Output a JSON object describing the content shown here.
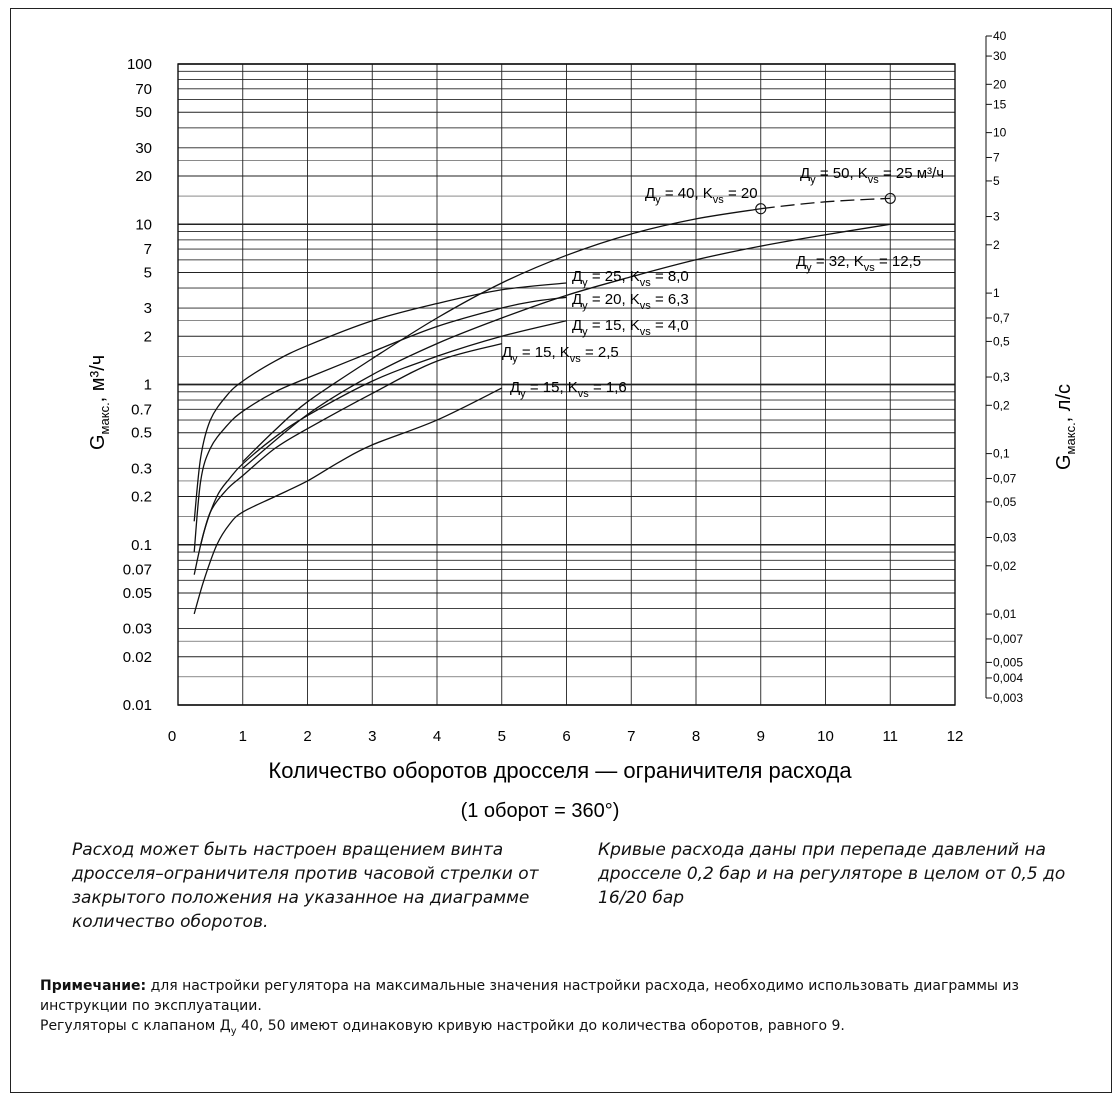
{
  "chart_data": {
    "type": "line",
    "xlabel": "Количество оборотов дросселя — ограничителя расхода",
    "xlabel_note": "(1 оборот = 360°)",
    "ylabel_main": "G",
    "ylabel_sub": "макс.",
    "ylabel_unit": ", м³/ч",
    "y2label_main": "G",
    "y2label_sub": "макс.",
    "y2label_unit": ", л/с",
    "y_scale": "log",
    "xlim": [
      0,
      12
    ],
    "ylim": [
      0.01,
      100
    ],
    "grid": true,
    "x_ticks": [
      "0",
      "1",
      "2",
      "3",
      "4",
      "5",
      "6",
      "7",
      "8",
      "9",
      "10",
      "11",
      "12"
    ],
    "y_ticks": [
      {
        "v": 100,
        "t": "100"
      },
      {
        "v": 70,
        "t": "70"
      },
      {
        "v": 50,
        "t": "50"
      },
      {
        "v": 30,
        "t": "30"
      },
      {
        "v": 20,
        "t": "20"
      },
      {
        "v": 10,
        "t": "10"
      },
      {
        "v": 7,
        "t": "7"
      },
      {
        "v": 5,
        "t": "5"
      },
      {
        "v": 3,
        "t": "3"
      },
      {
        "v": 2,
        "t": "2"
      },
      {
        "v": 1,
        "t": "1"
      },
      {
        "v": 0.7,
        "t": "0.7"
      },
      {
        "v": 0.5,
        "t": "0.5"
      },
      {
        "v": 0.3,
        "t": "0.3"
      },
      {
        "v": 0.2,
        "t": "0.2"
      },
      {
        "v": 0.1,
        "t": "0.1"
      },
      {
        "v": 0.07,
        "t": "0.07"
      },
      {
        "v": 0.05,
        "t": "0.05"
      },
      {
        "v": 0.03,
        "t": "0.03"
      },
      {
        "v": 0.02,
        "t": "0.02"
      },
      {
        "v": 0.01,
        "t": "0.01"
      }
    ],
    "y2_ticks": [
      {
        "v": 40,
        "t": "40"
      },
      {
        "v": 30,
        "t": "30"
      },
      {
        "v": 20,
        "t": "20"
      },
      {
        "v": 15,
        "t": "15"
      },
      {
        "v": 10,
        "t": "10"
      },
      {
        "v": 7,
        "t": "7"
      },
      {
        "v": 5,
        "t": "5"
      },
      {
        "v": 3,
        "t": "3"
      },
      {
        "v": 2,
        "t": "2"
      },
      {
        "v": 1,
        "t": "1"
      },
      {
        "v": 0.7,
        "t": "0,7"
      },
      {
        "v": 0.5,
        "t": "0,5"
      },
      {
        "v": 0.3,
        "t": "0,3"
      },
      {
        "v": 0.2,
        "t": "0,2"
      },
      {
        "v": 0.1,
        "t": "0,1"
      },
      {
        "v": 0.07,
        "t": "0,07"
      },
      {
        "v": 0.05,
        "t": "0,05"
      },
      {
        "v": 0.03,
        "t": "0,03"
      },
      {
        "v": 0.02,
        "t": "0,02"
      },
      {
        "v": 0.01,
        "t": "0,01"
      },
      {
        "v": 0.007,
        "t": "0,007"
      },
      {
        "v": 0.005,
        "t": "0,005"
      },
      {
        "v": 0.004,
        "t": "0,004"
      },
      {
        "v": 0.003,
        "t": "0,003"
      }
    ],
    "series": [
      {
        "name": "Ду = 50, Kvs = 25 м³/ч",
        "dashed": true,
        "x": [
          9.0,
          9.5,
          10.0,
          10.5,
          11.0
        ],
        "y": [
          12.5,
          13.2,
          13.8,
          14.2,
          14.5
        ]
      },
      {
        "name": "Ду = 40, Kvs = 20",
        "x": [
          1.0,
          1.5,
          2.0,
          3.0,
          4.0,
          5.0,
          6.0,
          7.0,
          8.0,
          9.0
        ],
        "y": [
          0.33,
          0.52,
          0.78,
          1.45,
          2.6,
          4.3,
          6.4,
          8.7,
          10.8,
          12.5
        ]
      },
      {
        "name": "Ду = 32, Kvs = 12,5",
        "x": [
          1.0,
          2.0,
          3.0,
          4.0,
          5.0,
          6.0,
          7.0,
          8.0,
          9.0,
          10.0,
          11.0
        ],
        "y": [
          0.3,
          0.65,
          1.15,
          1.8,
          2.6,
          3.6,
          4.7,
          6.0,
          7.3,
          8.6,
          10.0
        ]
      },
      {
        "name": "Ду = 25, Kvs = 8,0",
        "x": [
          0.25,
          0.35,
          0.5,
          0.75,
          1.0,
          1.5,
          2.0,
          3.0,
          4.0,
          5.0,
          6.0
        ],
        "y": [
          0.14,
          0.35,
          0.6,
          0.85,
          1.05,
          1.4,
          1.75,
          2.5,
          3.2,
          3.9,
          4.3
        ]
      },
      {
        "name": "Ду = 20, Kvs = 6,3",
        "x": [
          0.25,
          0.35,
          0.5,
          0.75,
          1.0,
          1.5,
          2.0,
          3.0,
          4.0,
          5.0,
          5.5,
          6.0
        ],
        "y": [
          0.09,
          0.25,
          0.4,
          0.55,
          0.68,
          0.9,
          1.1,
          1.6,
          2.3,
          3.0,
          3.3,
          3.5
        ]
      },
      {
        "name": "Ду = 15, Kvs = 4,0",
        "x": [
          0.25,
          0.4,
          0.6,
          0.8,
          1.0,
          1.5,
          2.0,
          3.0,
          4.0,
          5.0,
          6.0
        ],
        "y": [
          0.065,
          0.12,
          0.2,
          0.26,
          0.32,
          0.47,
          0.64,
          1.05,
          1.5,
          2.0,
          2.5
        ]
      },
      {
        "name": "Ду = 15, Kvs = 2,5",
        "x": [
          0.35,
          0.5,
          0.75,
          1.0,
          1.5,
          2.0,
          3.0,
          4.0,
          5.0
        ],
        "y": [
          0.1,
          0.16,
          0.22,
          0.27,
          0.4,
          0.53,
          0.88,
          1.4,
          1.8
        ]
      },
      {
        "name": "Ду = 15, Kvs = 1,6",
        "x": [
          0.25,
          0.4,
          0.6,
          0.8,
          1.0,
          1.5,
          2.0,
          2.5,
          3.0,
          4.0,
          5.0
        ],
        "y": [
          0.037,
          0.06,
          0.1,
          0.135,
          0.16,
          0.2,
          0.25,
          0.33,
          0.42,
          0.6,
          0.95
        ]
      }
    ],
    "annotations": [
      {
        "main": "Д",
        "sub": "у",
        "rest1": " = 50, K",
        "sub2": "vs",
        "rest2": " = 25 м³/ч"
      },
      {
        "main": "Д",
        "sub": "у",
        "rest1": " = 40, K",
        "sub2": "vs",
        "rest2": " = 20"
      },
      {
        "main": "Д",
        "sub": "у",
        "rest1": " = 32, K",
        "sub2": "vs",
        "rest2": " = 12,5"
      },
      {
        "main": "Д",
        "sub": "у",
        "rest1": " = 25, K",
        "sub2": "vs",
        "rest2": " = 8,0"
      },
      {
        "main": "Д",
        "sub": "у",
        "rest1": " = 20, K",
        "sub2": "vs",
        "rest2": " = 6,3"
      },
      {
        "main": "Д",
        "sub": "у",
        "rest1": " = 15, K",
        "sub2": "vs",
        "rest2": " = 4,0"
      },
      {
        "main": "Д",
        "sub": "у",
        "rest1": " = 15, K",
        "sub2": "vs",
        "rest2": " = 2,5"
      },
      {
        "main": "Д",
        "sub": "у",
        "rest1": " = 15, K",
        "sub2": "vs",
        "rest2": " = 1,6"
      }
    ]
  },
  "text": {
    "desc_left": "Расход может быть настроен вращением винта дросселя–ограничителя против часовой стрелки от закрытого  положения на указанное на диаграмме количество оборотов.",
    "desc_right": "Кривые расхода даны при перепаде давлений на дросселе 0,2 бар и на регуляторе в целом от 0,5 до 16/20 бар",
    "note_label": "Примечание:",
    "note_text": " для настройки регулятора на максимальные значения настройки расхода, необходимо использовать диаграммы из инструкции по эксплуатации.",
    "note2_a": "Регуляторы с клапаном Д",
    "note2_sub": "у",
    "note2_b": " 40, 50 имеют одинаковую кривую настройки до количества оборотов, равного 9."
  }
}
